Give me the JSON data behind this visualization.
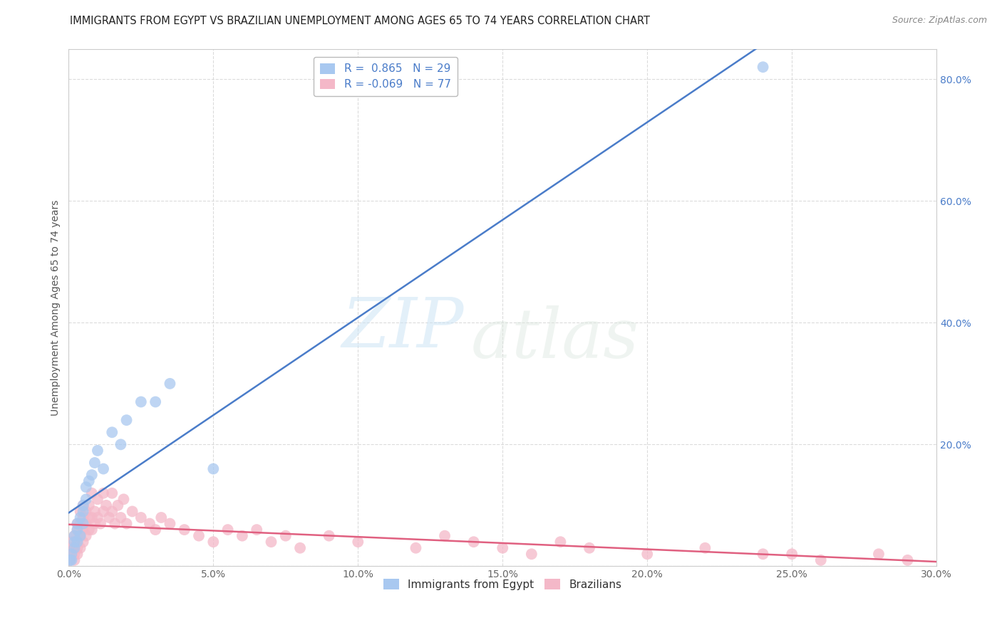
{
  "title": "IMMIGRANTS FROM EGYPT VS BRAZILIAN UNEMPLOYMENT AMONG AGES 65 TO 74 YEARS CORRELATION CHART",
  "source": "Source: ZipAtlas.com",
  "ylabel": "Unemployment Among Ages 65 to 74 years",
  "xlim": [
    0.0,
    0.3
  ],
  "ylim": [
    0.0,
    0.85
  ],
  "xtick_vals": [
    0.0,
    0.05,
    0.1,
    0.15,
    0.2,
    0.25,
    0.3
  ],
  "ytick_vals": [
    0.0,
    0.2,
    0.4,
    0.6,
    0.8
  ],
  "ytick_labels_right": [
    "",
    "20.0%",
    "40.0%",
    "60.0%",
    "80.0%"
  ],
  "egypt_R": 0.865,
  "egypt_N": 29,
  "brazil_R": -0.069,
  "brazil_N": 77,
  "egypt_color": "#a8c8f0",
  "brazil_color": "#f4b8c8",
  "egypt_line_color": "#4a7cc9",
  "brazil_line_color": "#e06080",
  "egypt_scatter_x": [
    0.0005,
    0.001,
    0.001,
    0.002,
    0.002,
    0.002,
    0.003,
    0.003,
    0.003,
    0.004,
    0.004,
    0.005,
    0.005,
    0.005,
    0.006,
    0.006,
    0.007,
    0.008,
    0.009,
    0.01,
    0.012,
    0.015,
    0.018,
    0.02,
    0.025,
    0.03,
    0.035,
    0.05,
    0.24
  ],
  "egypt_scatter_y": [
    0.01,
    0.01,
    0.02,
    0.03,
    0.04,
    0.05,
    0.04,
    0.06,
    0.07,
    0.05,
    0.08,
    0.07,
    0.1,
    0.09,
    0.11,
    0.13,
    0.14,
    0.15,
    0.17,
    0.19,
    0.16,
    0.22,
    0.2,
    0.24,
    0.27,
    0.27,
    0.3,
    0.16,
    0.82
  ],
  "brazil_scatter_x": [
    0.0005,
    0.001,
    0.001,
    0.001,
    0.002,
    0.002,
    0.002,
    0.002,
    0.003,
    0.003,
    0.003,
    0.003,
    0.003,
    0.004,
    0.004,
    0.004,
    0.004,
    0.005,
    0.005,
    0.005,
    0.005,
    0.006,
    0.006,
    0.006,
    0.007,
    0.007,
    0.007,
    0.008,
    0.008,
    0.008,
    0.009,
    0.009,
    0.01,
    0.01,
    0.011,
    0.012,
    0.012,
    0.013,
    0.014,
    0.015,
    0.015,
    0.016,
    0.017,
    0.018,
    0.019,
    0.02,
    0.022,
    0.025,
    0.028,
    0.03,
    0.032,
    0.035,
    0.04,
    0.045,
    0.05,
    0.055,
    0.06,
    0.07,
    0.08,
    0.09,
    0.1,
    0.12,
    0.14,
    0.15,
    0.16,
    0.17,
    0.18,
    0.2,
    0.22,
    0.24,
    0.25,
    0.26,
    0.28,
    0.29,
    0.13,
    0.065,
    0.075
  ],
  "brazil_scatter_y": [
    0.01,
    0.02,
    0.03,
    0.04,
    0.01,
    0.02,
    0.03,
    0.05,
    0.02,
    0.03,
    0.04,
    0.06,
    0.07,
    0.03,
    0.05,
    0.07,
    0.09,
    0.04,
    0.06,
    0.08,
    0.1,
    0.05,
    0.07,
    0.09,
    0.06,
    0.08,
    0.1,
    0.06,
    0.08,
    0.12,
    0.07,
    0.09,
    0.08,
    0.11,
    0.07,
    0.09,
    0.12,
    0.1,
    0.08,
    0.09,
    0.12,
    0.07,
    0.1,
    0.08,
    0.11,
    0.07,
    0.09,
    0.08,
    0.07,
    0.06,
    0.08,
    0.07,
    0.06,
    0.05,
    0.04,
    0.06,
    0.05,
    0.04,
    0.03,
    0.05,
    0.04,
    0.03,
    0.04,
    0.03,
    0.02,
    0.04,
    0.03,
    0.02,
    0.03,
    0.02,
    0.02,
    0.01,
    0.02,
    0.01,
    0.05,
    0.06,
    0.05
  ],
  "grid_color": "#d8d8d8",
  "background_color": "#ffffff",
  "title_fontsize": 10.5,
  "axis_label_fontsize": 10,
  "tick_fontsize": 10,
  "legend_fontsize": 11
}
